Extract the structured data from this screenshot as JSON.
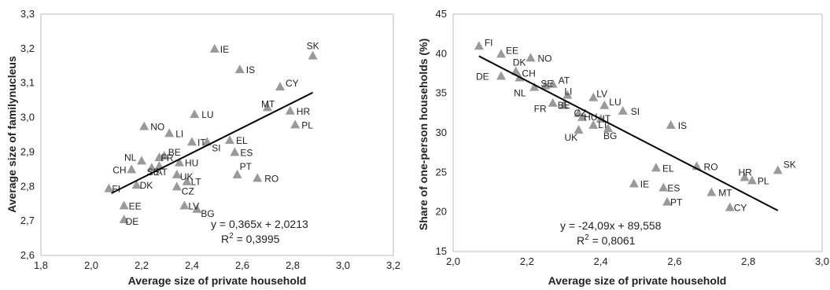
{
  "chart_data": [
    {
      "type": "scatter",
      "title": "",
      "xlabel": "Average size of private household",
      "ylabel": "Average size of familynucleus",
      "xlim": [
        1.8,
        3.2
      ],
      "ylim": [
        2.6,
        3.3
      ],
      "xticks": [
        "1,8",
        "2,0",
        "2,2",
        "2,4",
        "2,6",
        "2,8",
        "3,0",
        "3,2"
      ],
      "yticks": [
        "2,6",
        "2,7",
        "2,8",
        "2,9",
        "3,0",
        "3,1",
        "3,2",
        "3,3"
      ],
      "grid": false,
      "marker_color": "#9a9a9a",
      "line_color": "#000000",
      "trendline": {
        "slope": 0.365,
        "intercept": 2.0213,
        "x_range": [
          2.08,
          2.88
        ]
      },
      "equation": "y = 0,365x + 2,0213",
      "r2_prefix": "R",
      "r2_value": " = 0,3995",
      "points": [
        {
          "label": "IE",
          "x": 2.49,
          "y": 3.2
        },
        {
          "label": "SK",
          "x": 2.88,
          "y": 3.18
        },
        {
          "label": "IS",
          "x": 2.59,
          "y": 3.14
        },
        {
          "label": "CY",
          "x": 2.75,
          "y": 3.09
        },
        {
          "label": "MT",
          "x": 2.7,
          "y": 3.03
        },
        {
          "label": "HR",
          "x": 2.79,
          "y": 3.02
        },
        {
          "label": "LU",
          "x": 2.41,
          "y": 3.01
        },
        {
          "label": "PL",
          "x": 2.81,
          "y": 2.98
        },
        {
          "label": "NO",
          "x": 2.21,
          "y": 2.975
        },
        {
          "label": "LI",
          "x": 2.31,
          "y": 2.955
        },
        {
          "label": "IT",
          "x": 2.4,
          "y": 2.93
        },
        {
          "label": "SI",
          "x": 2.46,
          "y": 2.93
        },
        {
          "label": "EL",
          "x": 2.55,
          "y": 2.935
        },
        {
          "label": "ES",
          "x": 2.57,
          "y": 2.9
        },
        {
          "label": "NL",
          "x": 2.2,
          "y": 2.875
        },
        {
          "label": "FR",
          "x": 2.27,
          "y": 2.885
        },
        {
          "label": "BE",
          "x": 2.29,
          "y": 2.89
        },
        {
          "label": "HU",
          "x": 2.35,
          "y": 2.87
        },
        {
          "label": "CH",
          "x": 2.16,
          "y": 2.85
        },
        {
          "label": "SE",
          "x": 2.24,
          "y": 2.855
        },
        {
          "label": "AT",
          "x": 2.27,
          "y": 2.86
        },
        {
          "label": "UK",
          "x": 2.34,
          "y": 2.835
        },
        {
          "label": "LT",
          "x": 2.38,
          "y": 2.815
        },
        {
          "label": "PT",
          "x": 2.58,
          "y": 2.835
        },
        {
          "label": "RO",
          "x": 2.66,
          "y": 2.825
        },
        {
          "label": "DK",
          "x": 2.18,
          "y": 2.805
        },
        {
          "label": "CZ",
          "x": 2.34,
          "y": 2.8
        },
        {
          "label": "FI",
          "x": 2.07,
          "y": 2.795
        },
        {
          "label": "EE",
          "x": 2.13,
          "y": 2.745
        },
        {
          "label": "LV",
          "x": 2.37,
          "y": 2.745
        },
        {
          "label": "BG",
          "x": 2.42,
          "y": 2.735
        },
        {
          "label": "DE",
          "x": 2.13,
          "y": 2.705
        }
      ]
    },
    {
      "type": "scatter",
      "title": "",
      "xlabel": "Average size of private household",
      "ylabel": "Share of one-person households (%)",
      "xlim": [
        2.0,
        3.0
      ],
      "ylim": [
        15,
        45
      ],
      "xticks": [
        "2,0",
        "2,2",
        "2,4",
        "2,6",
        "2,8",
        "3,0"
      ],
      "yticks": [
        "15",
        "20",
        "25",
        "30",
        "35",
        "40",
        "45"
      ],
      "grid": false,
      "marker_color": "#9a9a9a",
      "line_color": "#000000",
      "trendline": {
        "slope": -24.09,
        "intercept": 89.558,
        "x_range": [
          2.07,
          2.88
        ]
      },
      "equation": "y = -24,09x + 89,558",
      "r2_prefix": "R",
      "r2_value": " = 0,8061",
      "points": [
        {
          "label": "FI",
          "x": 2.07,
          "y": 41.0
        },
        {
          "label": "EE",
          "x": 2.13,
          "y": 40.0
        },
        {
          "label": "NO",
          "x": 2.21,
          "y": 39.5
        },
        {
          "label": "DK",
          "x": 2.17,
          "y": 37.8
        },
        {
          "label": "CH",
          "x": 2.18,
          "y": 37.0
        },
        {
          "label": "DE",
          "x": 2.13,
          "y": 37.2
        },
        {
          "label": "AT",
          "x": 2.27,
          "y": 36.2
        },
        {
          "label": "NL",
          "x": 2.22,
          "y": 35.8
        },
        {
          "label": "SE",
          "x": 2.25,
          "y": 36.0
        },
        {
          "label": "LI",
          "x": 2.31,
          "y": 34.8
        },
        {
          "label": "LV",
          "x": 2.38,
          "y": 34.5
        },
        {
          "label": "LU",
          "x": 2.41,
          "y": 33.5
        },
        {
          "label": "FR",
          "x": 2.27,
          "y": 33.8
        },
        {
          "label": "BE",
          "x": 2.3,
          "y": 33.5
        },
        {
          "label": "SI",
          "x": 2.46,
          "y": 32.8
        },
        {
          "label": "CZ",
          "x": 2.34,
          "y": 32.5
        },
        {
          "label": "HU",
          "x": 2.35,
          "y": 32.0
        },
        {
          "label": "IT",
          "x": 2.4,
          "y": 31.8
        },
        {
          "label": "LT",
          "x": 2.38,
          "y": 31.0
        },
        {
          "label": "BG",
          "x": 2.42,
          "y": 30.6
        },
        {
          "label": "UK",
          "x": 2.34,
          "y": 30.4
        },
        {
          "label": "IS",
          "x": 2.59,
          "y": 31.0
        },
        {
          "label": "EL",
          "x": 2.55,
          "y": 25.6
        },
        {
          "label": "RO",
          "x": 2.66,
          "y": 25.8
        },
        {
          "label": "HR",
          "x": 2.79,
          "y": 24.4
        },
        {
          "label": "SK",
          "x": 2.88,
          "y": 25.3
        },
        {
          "label": "PL",
          "x": 2.81,
          "y": 24.0
        },
        {
          "label": "IE",
          "x": 2.49,
          "y": 23.6
        },
        {
          "label": "ES",
          "x": 2.57,
          "y": 23.1
        },
        {
          "label": "MT",
          "x": 2.7,
          "y": 22.5
        },
        {
          "label": "PT",
          "x": 2.58,
          "y": 21.3
        },
        {
          "label": "CY",
          "x": 2.75,
          "y": 20.6
        }
      ]
    }
  ]
}
